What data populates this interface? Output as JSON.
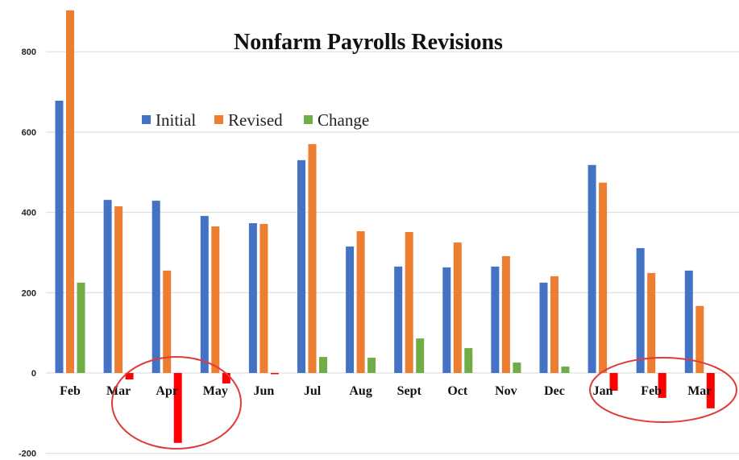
{
  "chart_data": {
    "type": "bar",
    "title": "Nonfarm Payrolls Revisions",
    "categories": [
      "Feb",
      "Mar",
      "Apr",
      "May",
      "Jun",
      "Jul",
      "Aug",
      "Sept",
      "Oct",
      "Nov",
      "Dec",
      "Jan",
      "Feb",
      "Mar"
    ],
    "series": [
      {
        "name": "Initial",
        "color": "#4472C4",
        "values": [
          678,
          431,
          429,
          391,
          373,
          530,
          315,
          265,
          263,
          265,
          225,
          518,
          311,
          255
        ]
      },
      {
        "name": "Revised",
        "color": "#ED7D31",
        "values": [
          903,
          415,
          255,
          365,
          371,
          570,
          353,
          351,
          325,
          291,
          241,
          474,
          249,
          167
        ]
      },
      {
        "name": "Change",
        "color": "#70AD47",
        "negative_color": "#FF0000",
        "values": [
          225,
          -16,
          -174,
          -26,
          -2,
          40,
          38,
          86,
          62,
          26,
          16,
          -44,
          -62,
          -88
        ]
      }
    ],
    "yticks": [
      -200,
      0,
      200,
      400,
      600,
      800
    ],
    "ylim": [
      -200,
      930
    ],
    "grid": true,
    "legend": "top-left",
    "xlabel": "",
    "ylabel": "",
    "annotation_color": "#E03A3A"
  }
}
